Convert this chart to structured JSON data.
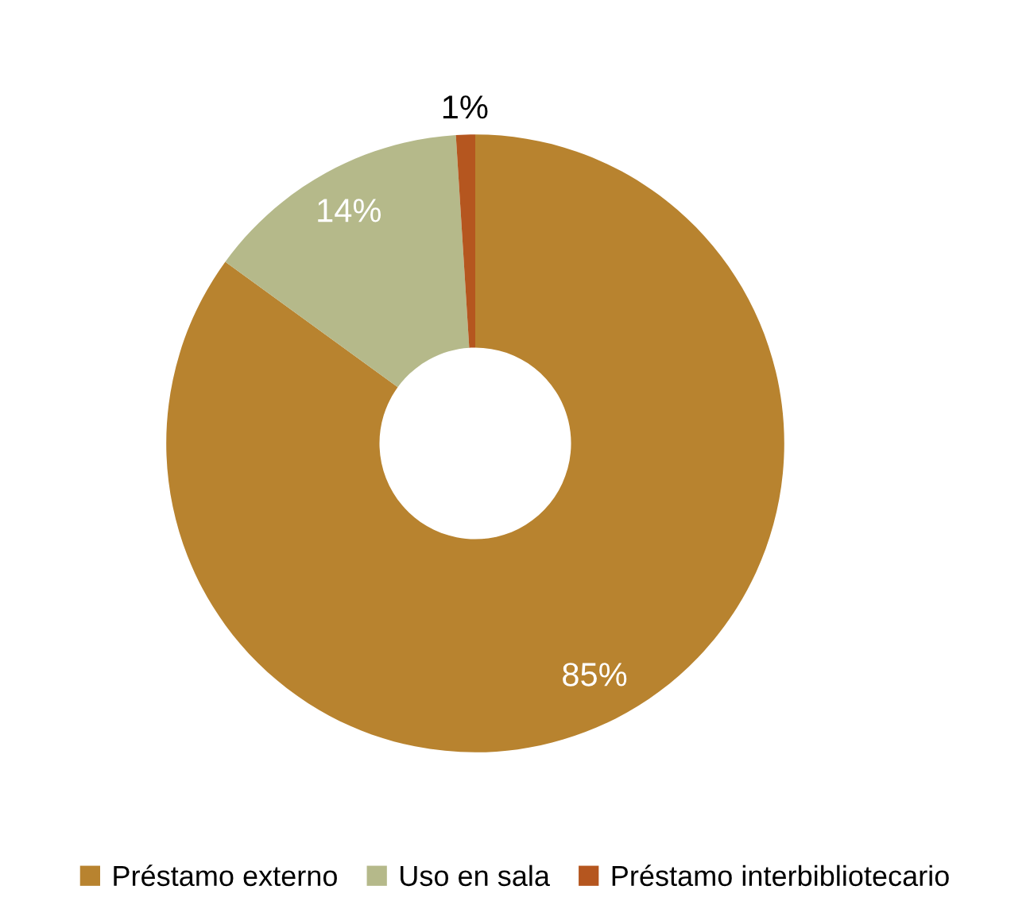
{
  "chart_data": {
    "type": "donut",
    "categories": [
      "Préstamo externo",
      "Uso en sala",
      "Préstamo interbibliotecario"
    ],
    "values": [
      85,
      14,
      1
    ],
    "value_labels": [
      "85%",
      "14%",
      "1%"
    ],
    "colors": [
      "#b8832f",
      "#b5b98a",
      "#b5561f"
    ],
    "legend": "bottom"
  }
}
